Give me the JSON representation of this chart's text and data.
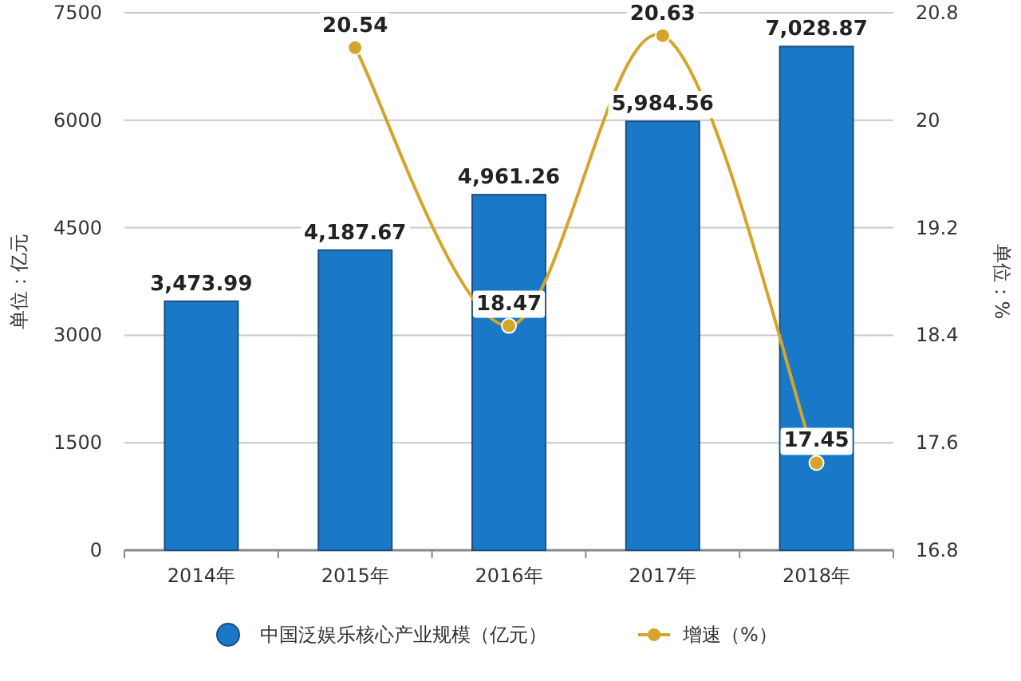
{
  "chart_data": {
    "type": "bar",
    "ylabel": "单位：亿元",
    "y2label": "单位：%",
    "categories": [
      "2014年",
      "2015年",
      "2016年",
      "2017年",
      "2018年"
    ],
    "series": [
      {
        "name": "中国泛娱乐核心产业规模（亿元）",
        "color": "#1a78c8",
        "values": [
          3473.99,
          4187.67,
          4961.26,
          5984.56,
          7028.87
        ],
        "value_labels": [
          "3,473.99",
          "4,187.67",
          "4,961.26",
          "5,984.56",
          "7,028.87"
        ]
      },
      {
        "name": "增速（%）",
        "type": "line",
        "axis": "y2",
        "color": "#d4a52a",
        "marker": "circle",
        "values": [
          null,
          20.54,
          18.47,
          20.63,
          17.45
        ],
        "value_labels": [
          null,
          "20.54",
          "18.47",
          "20.63",
          "17.45"
        ]
      }
    ],
    "ylim": [
      0,
      7500
    ],
    "yticks": [
      0,
      1500,
      3000,
      4500,
      6000,
      7500
    ],
    "y2lim": [
      16.8,
      20.8
    ],
    "y2ticks": [
      16.8,
      17.6,
      18.4,
      19.2,
      20,
      20.8
    ],
    "grid": "y",
    "legend": "bottom"
  }
}
